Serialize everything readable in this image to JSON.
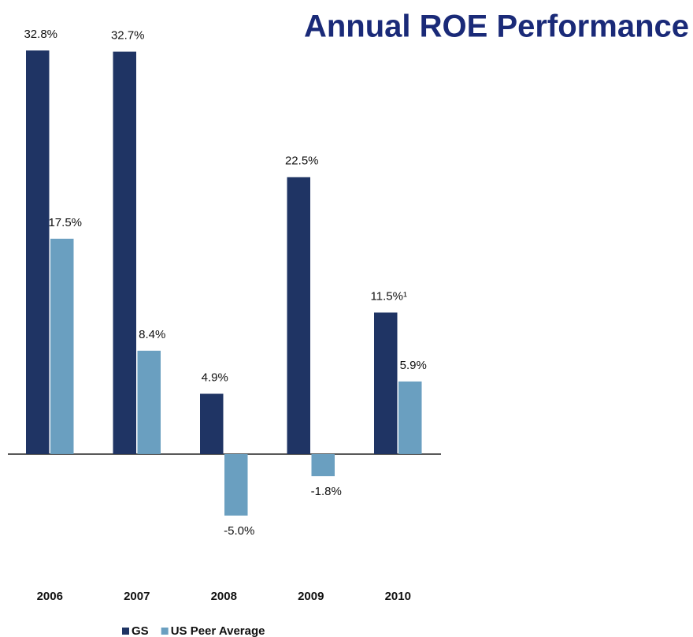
{
  "chart_data": {
    "type": "bar",
    "title": "Annual ROE Performance",
    "categories": [
      "2006",
      "2007",
      "2008",
      "2009",
      "2010"
    ],
    "series": [
      {
        "name": "GS",
        "color": "#1f3464",
        "values": [
          32.8,
          32.7,
          4.9,
          22.5,
          11.5
        ],
        "value_labels": [
          "32.8%",
          "32.7%",
          "4.9%",
          "22.5%",
          "11.5%¹"
        ]
      },
      {
        "name": "US Peer Average",
        "color": "#6a9fc0",
        "values": [
          17.5,
          8.4,
          -5.0,
          -1.8,
          5.9
        ],
        "value_labels": [
          "17.5%",
          "8.4%",
          "-5.0%",
          "-1.8%",
          "5.9%"
        ]
      }
    ],
    "legend": "bottom"
  }
}
